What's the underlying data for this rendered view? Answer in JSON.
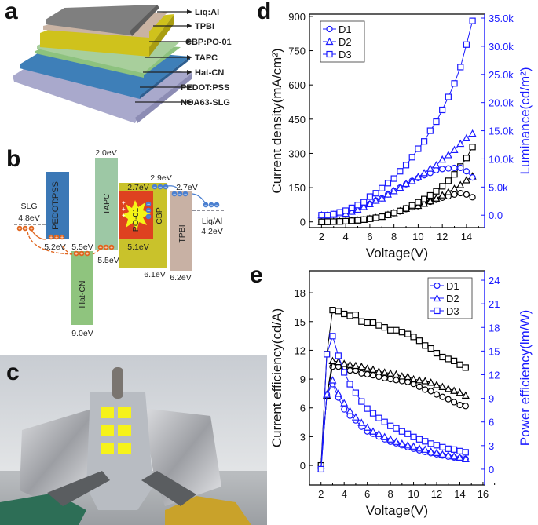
{
  "panels": {
    "a": {
      "letter": "a",
      "layers": [
        "Liq:Al",
        "TPBI",
        "CBP:PO-01",
        "TAPC",
        "Hat-CN",
        "PEDOT:PSS",
        "NOA63-SLG"
      ],
      "colors": [
        "#7f7f7f",
        "#c9b3a3",
        "#cfc21c",
        "#a8cf9c",
        "#8dc27e",
        "#3e7fb8",
        "#a9a9cc"
      ]
    },
    "b": {
      "letter": "b",
      "materials": {
        "pedot": "PEDOT:PSS",
        "tapc": "TAPC",
        "hatcn": "Hat-CN",
        "cbp": "CBP",
        "po01": "PO-01",
        "tpbi": "TPBI",
        "slg": "SLG",
        "liqal": "Liq/Al"
      },
      "levels": {
        "slg": "4.8eV",
        "pedot": "5.2eV",
        "hatcn_top": "5.5eV",
        "hatcn_bottom": "9.0eV",
        "tapc_top": "2.0eV",
        "tapc_bottom": "5.5eV",
        "po01_top": "2.7eV",
        "po01_bottom": "5.1eV",
        "cbp_top": "2.9eV",
        "cbp_bottom": "6.1eV",
        "tpbi_top": "2.7eV",
        "tpbi_bottom": "6.2eV",
        "liqal": "4.2eV"
      },
      "colors": {
        "pedot": "#3b78b6",
        "tapc": "#9dc8a5",
        "hatcn": "#8fc47e",
        "cbp": "#c9c22b",
        "po01": "#de4220",
        "tpbi": "#c8b1a4",
        "hole": "#e0661f",
        "electron": "#4a7fd0"
      }
    },
    "c": {
      "letter": "c"
    },
    "d": {
      "letter": "d"
    },
    "e": {
      "letter": "e"
    }
  },
  "chart_data": [
    {
      "panel": "d",
      "type": "line",
      "xlabel": "Voltage(V)",
      "ylabel": "Current density(mA/cm²)",
      "y2label": "Luminance(cd/m²)",
      "xlim": [
        1,
        15.5
      ],
      "ylim": [
        -25,
        910
      ],
      "y2lim": [
        -2200,
        35700
      ],
      "xticks": [
        2,
        4,
        6,
        8,
        10,
        12,
        14
      ],
      "xtick_labels": [
        "2",
        "4",
        "6",
        "8",
        "10",
        "12",
        "14"
      ],
      "yticks": [
        0,
        150,
        300,
        450,
        600,
        750,
        900
      ],
      "ytick_labels": [
        "0",
        "150",
        "300",
        "450",
        "600",
        "750",
        "900"
      ],
      "y2ticks": [
        0,
        5000,
        10000,
        15000,
        20000,
        25000,
        30000,
        35000
      ],
      "y2tick_labels": [
        "0.0",
        "5.0k",
        "10.0k",
        "15.0k",
        "20.0k",
        "25.0k",
        "30.0k",
        "35.0k"
      ],
      "legend": {
        "position": "top-left",
        "entries": [
          "D1",
          "D2",
          "D3"
        ]
      },
      "colors": {
        "left": "#000000",
        "right": "#1a1aff"
      },
      "x": [
        2,
        2.5,
        3,
        3.5,
        4,
        4.5,
        5,
        5.5,
        6,
        6.5,
        7,
        7.5,
        8,
        8.5,
        9,
        9.5,
        10,
        10.5,
        11,
        11.5,
        12,
        12.5,
        13,
        13.5,
        14,
        14.5
      ],
      "series": [
        {
          "name": "D1",
          "axis": "left",
          "marker": "circle",
          "values": [
            0,
            0,
            1,
            2,
            3,
            5,
            7,
            10,
            14,
            18,
            23,
            30,
            38,
            46,
            56,
            64,
            69,
            80,
            88,
            97,
            106,
            112,
            120,
            126,
            120,
            108
          ]
        },
        {
          "name": "D2",
          "axis": "left",
          "marker": "triangle",
          "values": [
            0,
            0,
            1,
            2,
            3,
            5,
            7,
            10,
            14,
            18,
            23,
            31,
            39,
            48,
            58,
            66,
            71,
            80,
            91,
            103,
            117,
            131,
            146,
            162,
            183,
            200
          ]
        },
        {
          "name": "D3",
          "axis": "left",
          "marker": "square",
          "values": [
            0,
            1,
            1,
            2,
            3,
            5,
            7,
            10,
            14,
            18,
            23,
            31,
            39,
            48,
            59,
            72,
            86,
            100,
            116,
            134,
            156,
            180,
            208,
            242,
            280,
            328
          ]
        },
        {
          "name": "D1",
          "axis": "right",
          "marker": "circle",
          "values": [
            0,
            0,
            100,
            200,
            300,
            650,
            1000,
            1500,
            2000,
            2600,
            3000,
            3700,
            4300,
            4900,
            5500,
            6100,
            6600,
            7100,
            7500,
            8000,
            8200,
            8300,
            8400,
            8400,
            7800,
            6700
          ]
        },
        {
          "name": "D2",
          "axis": "right",
          "marker": "triangle",
          "values": [
            0,
            0,
            100,
            200,
            300,
            650,
            1000,
            1500,
            2000,
            2600,
            3000,
            3700,
            4300,
            4900,
            5600,
            6100,
            6800,
            7500,
            8300,
            8900,
            9900,
            10700,
            11600,
            12700,
            13700,
            14500
          ]
        },
        {
          "name": "D3",
          "axis": "right",
          "marker": "square",
          "values": [
            0,
            0,
            200,
            500,
            800,
            1300,
            1800,
            2300,
            3300,
            3900,
            4800,
            5700,
            6500,
            7800,
            8900,
            10300,
            11800,
            13100,
            15000,
            16600,
            18700,
            21000,
            23400,
            26300,
            30300,
            34500
          ]
        }
      ]
    },
    {
      "panel": "e",
      "type": "line",
      "xlabel": "Voltage(V)",
      "ylabel": "Current efficiency(cd/A)",
      "y2label": "Power efficiency(lm/W)",
      "xlim": [
        1,
        16.14
      ],
      "ylim": [
        -2.04,
        20.3
      ],
      "y2lim": [
        -2,
        25.2
      ],
      "xticks": [
        2,
        4,
        6,
        8,
        10,
        12,
        14,
        16
      ],
      "xtick_labels": [
        "2",
        "4",
        "6",
        "8",
        "10",
        "12",
        "14",
        "16"
      ],
      "yticks": [
        0,
        3,
        6,
        9,
        12,
        15,
        18
      ],
      "ytick_labels": [
        "0",
        "3",
        "6",
        "9",
        "12",
        "15",
        "18"
      ],
      "y2ticks": [
        0,
        3,
        6,
        9,
        12,
        15,
        18,
        21,
        24
      ],
      "y2tick_labels": [
        "0",
        "3",
        "6",
        "9",
        "12",
        "15",
        "18",
        "21",
        "24"
      ],
      "legend": {
        "position": "top-right",
        "entries": [
          "D1",
          "D2",
          "D3"
        ]
      },
      "colors": {
        "left": "#000000",
        "right": "#1a1aff"
      },
      "x": [
        2,
        2.5,
        3,
        3.5,
        4,
        4.5,
        5,
        5.5,
        6,
        6.5,
        7,
        7.5,
        8,
        8.5,
        9,
        9.5,
        10,
        10.5,
        11,
        11.5,
        12,
        12.5,
        13,
        13.5,
        14,
        14.5
      ],
      "series": [
        {
          "name": "D1",
          "axis": "left",
          "marker": "circle",
          "values": [
            0,
            7.3,
            10.3,
            10.3,
            10.1,
            9.9,
            9.9,
            9.6,
            9.5,
            9.4,
            9.25,
            9.1,
            9.0,
            8.9,
            8.8,
            8.7,
            8.5,
            8.2,
            7.9,
            7.75,
            7.4,
            7.15,
            6.9,
            6.6,
            6.3,
            6.2
          ]
        },
        {
          "name": "D2",
          "axis": "left",
          "marker": "triangle",
          "values": [
            0,
            7.3,
            10.9,
            10.8,
            10.6,
            10.5,
            10.4,
            10.3,
            10.1,
            10.0,
            9.8,
            9.7,
            9.6,
            9.5,
            9.3,
            9.25,
            9.0,
            8.9,
            8.8,
            8.65,
            8.4,
            8.2,
            8.0,
            7.8,
            7.6,
            7.3
          ]
        },
        {
          "name": "D3",
          "axis": "left",
          "marker": "square",
          "values": [
            0,
            11.6,
            16.2,
            16.1,
            15.8,
            15.6,
            15.7,
            15.0,
            14.9,
            14.9,
            14.6,
            14.4,
            14.1,
            14.1,
            13.9,
            13.7,
            13.4,
            13.0,
            12.5,
            12.2,
            11.7,
            11.3,
            11.1,
            10.9,
            10.5,
            10.2
          ]
        },
        {
          "name": "D1",
          "axis": "right",
          "marker": "circle",
          "values": [
            0,
            9.5,
            10.8,
            9.1,
            7.6,
            6.8,
            6.2,
            5.4,
            4.8,
            4.5,
            4.15,
            3.8,
            3.5,
            3.3,
            3.05,
            2.8,
            2.6,
            2.4,
            2.2,
            2.05,
            1.9,
            1.75,
            1.6,
            1.5,
            1.4,
            1.3
          ]
        },
        {
          "name": "D2",
          "axis": "right",
          "marker": "triangle",
          "values": [
            0,
            9.5,
            11.3,
            9.6,
            8.4,
            7.4,
            6.6,
            5.9,
            5.3,
            4.8,
            4.5,
            4.1,
            3.8,
            3.5,
            3.25,
            3.05,
            2.9,
            2.65,
            2.5,
            2.25,
            2.1,
            1.9,
            1.8,
            1.65,
            1.5,
            1.3
          ]
        },
        {
          "name": "D3",
          "axis": "right",
          "marker": "square",
          "values": [
            0,
            14.6,
            16.9,
            14.4,
            12.3,
            10.8,
            9.7,
            8.6,
            7.7,
            7.1,
            6.5,
            6.0,
            5.5,
            5.2,
            4.8,
            4.5,
            4.1,
            3.8,
            3.55,
            3.25,
            3.05,
            2.8,
            2.6,
            2.5,
            2.3,
            2.15
          ]
        }
      ]
    }
  ]
}
